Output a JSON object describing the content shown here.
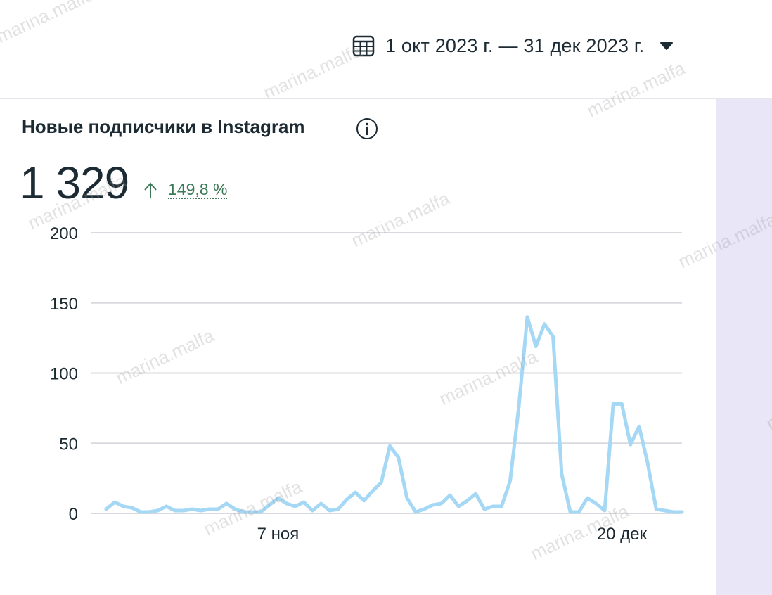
{
  "header": {
    "date_range": "1 окт 2023 г. — 31 дек 2023 г.",
    "calendar_icon": "calendar-icon",
    "dropdown_icon": "caret-down-icon"
  },
  "card": {
    "title": "Новые подписчики в Instagram",
    "info_icon": "info-icon",
    "total": "1 329",
    "trend_icon": "arrow-up-icon",
    "trend_percent": "149,8 %",
    "trend_color": "#3b7a57"
  },
  "watermark": "marina.malfa",
  "chart_data": {
    "type": "line",
    "y_ticks": [
      "200",
      "150",
      "100",
      "50",
      "0"
    ],
    "x_ticks": [
      "7 ноя",
      "20 дек"
    ],
    "ylim": [
      0,
      200
    ],
    "line_color": "#a5d8f5",
    "series": [
      {
        "values": [
          3,
          8,
          5,
          4,
          1,
          1,
          2,
          5,
          2,
          2,
          3,
          2,
          3,
          3,
          7,
          3,
          1,
          1,
          1,
          6,
          11,
          7,
          5,
          8,
          2,
          7,
          2,
          3,
          10,
          15,
          9,
          16,
          22,
          48,
          40,
          11,
          1,
          3,
          6,
          7,
          13,
          5,
          9,
          14,
          3,
          5,
          5,
          23,
          75,
          140,
          119,
          135,
          126,
          28,
          1,
          1,
          11,
          7,
          2,
          78,
          78,
          49,
          62,
          36,
          3,
          2,
          1,
          1
        ]
      }
    ]
  }
}
